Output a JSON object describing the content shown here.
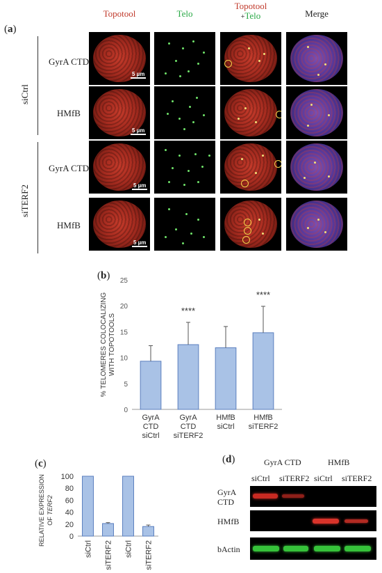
{
  "panel_a": {
    "label_paren_open": "(",
    "label_letter": "a",
    "label_paren_close": ")",
    "columns": {
      "topotool": "Topotool",
      "telo": "Telo",
      "overlay_top": "Topotool",
      "overlay_plus": "+",
      "overlay_bottom": "Telo",
      "merge": "Merge"
    },
    "groups": [
      "siCtrl",
      "siTERF2"
    ],
    "rows": [
      "GyrA CTD",
      "HMfB",
      "GyrA CTD",
      "HMfB"
    ],
    "scale_bar": "5 µm",
    "colors": {
      "topotool": "#c0392b",
      "telo": "#27a844",
      "ring": "#f3d34a"
    }
  },
  "panel_b": {
    "label_paren_open": "(",
    "label_letter": "b",
    "label_paren_close": ")"
  },
  "chart_data": [
    {
      "type": "bar",
      "ylabel_line1": "% TELOMERES COLOCALIZING",
      "ylabel_line2": "WITH TOPOTOOLS",
      "categories": [
        [
          "GyrA",
          "CTD",
          "siCtrl"
        ],
        [
          "GyrA",
          "CTD",
          "siTERF2"
        ],
        [
          "HMfB",
          "siCtrl"
        ],
        [
          "HMfB",
          "siTERF2"
        ]
      ],
      "values": [
        9.3,
        12.5,
        11.9,
        14.8
      ],
      "errors": [
        3.0,
        4.3,
        4.1,
        5.1
      ],
      "significance": [
        "",
        "****",
        "",
        "****"
      ],
      "ylim": [
        0,
        25
      ],
      "yticks": [
        0,
        5,
        10,
        15,
        20,
        25
      ],
      "grid": false,
      "bar_color": "#a9c2e6",
      "bar_edge": "#5b7fbf"
    },
    {
      "type": "bar",
      "ylabel_line1": "RELATIVE EXPRESSION",
      "ylabel_prefix": "OF ",
      "ylabel_italic": "TERF2",
      "categories": [
        "siCtrl",
        "siTERF2",
        "siCtrl",
        "siTERF2"
      ],
      "values": [
        100,
        21,
        100,
        16
      ],
      "errors": [
        0,
        1.5,
        0,
        2.5
      ],
      "ylim": [
        0,
        100
      ],
      "yticks": [
        0,
        20,
        40,
        60,
        80,
        100
      ],
      "grid": false,
      "bar_color": "#a9c2e6",
      "bar_edge": "#5b7fbf"
    }
  ],
  "panel_c": {
    "label_paren_open": "(",
    "label_letter": "c",
    "label_paren_close": ")"
  },
  "panel_d": {
    "label_paren_open": "(",
    "label_letter": "d",
    "label_paren_close": ")",
    "group_headers": [
      "GyrA CTD",
      "HMfB"
    ],
    "lanes": [
      "siCtrl",
      "siTERF2",
      "siCtrl",
      "siTERF2"
    ],
    "rows": [
      {
        "label_line1": "GyrA",
        "label_line2": "CTD"
      },
      {
        "label_line1": "HMfB",
        "label_line2": ""
      },
      {
        "label_line1": "bActin",
        "label_line2": ""
      }
    ],
    "band_colors": {
      "red": "#d9332a",
      "green": "#36c23a"
    }
  }
}
